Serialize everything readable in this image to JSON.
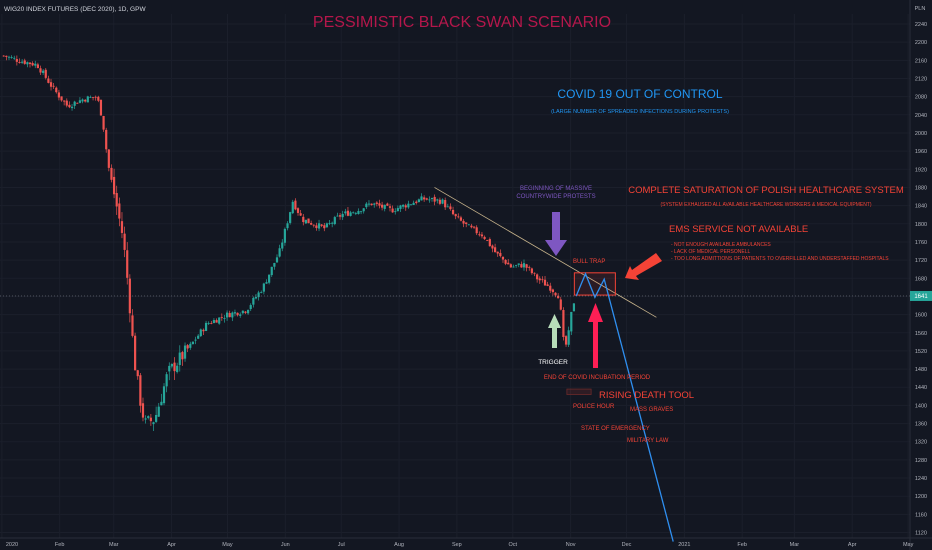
{
  "header": {
    "symbol": "WIG20 INDEX FUTURES (DEC 2020), 1D, GPW",
    "title": "PESSIMISTIC BLACK SWAN SCENARIO",
    "currency": "PLN"
  },
  "colors": {
    "background": "#131722",
    "up": "#26a69a",
    "down": "#ef5350",
    "title": "#b5174b",
    "covid": "#2196f3",
    "protest": "#7e57c2",
    "annotation_red": "#f44336",
    "trigger_arrow": "#b7dcb9",
    "trend_line": "#c8b48c",
    "projection": "#2f8ff0"
  },
  "annotations": {
    "covid_title": "COVID 19 OUT OF CONTROL",
    "covid_sub": "(LARGE NUMBER OF SPREADED INFECTIONS DURING PROTESTS)",
    "protests_l1": "BEGINNING OF MASSIVE",
    "protests_l2": "COUNTRYWIDE  PROTESTS",
    "saturation_title": "COMPLETE SATURATION OF POLISH HEALTHCARE SYSTEM",
    "saturation_sub": "(SYSTEM EXHAUSED ALL AVAILABLE HEALTHCARE WORKERS & MEDICAL EQUIPMENT)",
    "ems_title": "EMS SERVICE NOT AVAILABLE",
    "ems_b1": "- NOT ENOUGH AVAILABLE AMBULANCES",
    "ems_b2": "- LACK OF MEDICAL PERSONELL",
    "ems_b3": "- TOO LONG ADMITTIONS OF PATIENTS TO OVERFILLED AND UNDERSTAFFED HOSPITALS",
    "bull_trap": "BULL TRAP",
    "trigger": "TRIGGER",
    "incubation": "END OF COVID INCUBATION PERIOD",
    "death": "RISING DEATH TOOL",
    "police": "POLICE HOUR",
    "graves": "MASS GRAVES",
    "emergency": "STATE OF EMERGENCY",
    "martial": "MILITARY LAW"
  },
  "price_label": "1641",
  "chart_data": {
    "type": "candlestick",
    "title": "PESSIMISTIC BLACK SWAN SCENARIO",
    "y_axis_ticks": [
      2240,
      2200,
      2160,
      2120,
      2080,
      2040,
      2000,
      1960,
      1920,
      1880,
      1840,
      1800,
      1760,
      1720,
      1680,
      1640,
      1600,
      1560,
      1520,
      1480,
      1440,
      1400,
      1360,
      1320,
      1280,
      1240,
      1200,
      1160,
      1120
    ],
    "x_axis_ticks": [
      "2020",
      "Feb",
      "Mar",
      "Apr",
      "May",
      "Jun",
      "Jul",
      "Aug",
      "Sep",
      "Oct",
      "Nov",
      "Dec",
      "2021",
      "Feb",
      "Mar",
      "Apr",
      "May"
    ],
    "ylim": [
      1108,
      2262
    ],
    "last_price": 1641,
    "close_path": [
      [
        "2020-01-02",
        2170
      ],
      [
        "2020-01-10",
        2160
      ],
      [
        "2020-01-20",
        2150
      ],
      [
        "2020-01-29",
        2095
      ],
      [
        "2020-02-05",
        2060
      ],
      [
        "2020-02-14",
        2075
      ],
      [
        "2020-02-21",
        2080
      ],
      [
        "2020-02-24",
        2030
      ],
      [
        "2020-02-27",
        1930
      ],
      [
        "2020-03-02",
        1850
      ],
      [
        "2020-03-06",
        1770
      ],
      [
        "2020-03-09",
        1650
      ],
      [
        "2020-03-12",
        1500
      ],
      [
        "2020-03-16",
        1390
      ],
      [
        "2020-03-18",
        1360
      ],
      [
        "2020-03-23",
        1370
      ],
      [
        "2020-03-30",
        1470
      ],
      [
        "2020-04-09",
        1520
      ],
      [
        "2020-04-20",
        1580
      ],
      [
        "2020-05-01",
        1600
      ],
      [
        "2020-05-11",
        1610
      ],
      [
        "2020-05-20",
        1660
      ],
      [
        "2020-05-29",
        1740
      ],
      [
        "2020-06-05",
        1850
      ],
      [
        "2020-06-10",
        1810
      ],
      [
        "2020-06-22",
        1790
      ],
      [
        "2020-07-01",
        1820
      ],
      [
        "2020-07-10",
        1830
      ],
      [
        "2020-07-17",
        1845
      ],
      [
        "2020-07-28",
        1830
      ],
      [
        "2020-08-07",
        1845
      ],
      [
        "2020-08-14",
        1855
      ],
      [
        "2020-08-24",
        1850
      ],
      [
        "2020-08-31",
        1815
      ],
      [
        "2020-09-08",
        1790
      ],
      [
        "2020-09-15",
        1775
      ],
      [
        "2020-09-22",
        1735
      ],
      [
        "2020-09-30",
        1705
      ],
      [
        "2020-10-07",
        1710
      ],
      [
        "2020-10-14",
        1680
      ],
      [
        "2020-10-21",
        1660
      ],
      [
        "2020-10-26",
        1640
      ],
      [
        "2020-10-28",
        1545
      ],
      [
        "2020-10-30",
        1530
      ],
      [
        "2020-11-02",
        1620
      ],
      [
        "2020-11-04",
        1641
      ]
    ],
    "trend_line": [
      [
        "2020-08-20",
        1880
      ],
      [
        "2020-12-17",
        1594
      ]
    ],
    "projection": [
      [
        "2020-11-04",
        1641
      ],
      [
        "2020-11-09",
        1690
      ],
      [
        "2020-11-14",
        1638
      ],
      [
        "2020-11-19",
        1678
      ],
      [
        "2020-12-26",
        1100
      ]
    ],
    "bull_trap_zone": {
      "from": "2020-11-03",
      "to": "2020-11-25",
      "low": 1643,
      "high": 1692
    },
    "police_hour_zone": {
      "from": "2020-10-30",
      "to": "2020-11-12",
      "low": 1424,
      "high": 1436
    }
  }
}
